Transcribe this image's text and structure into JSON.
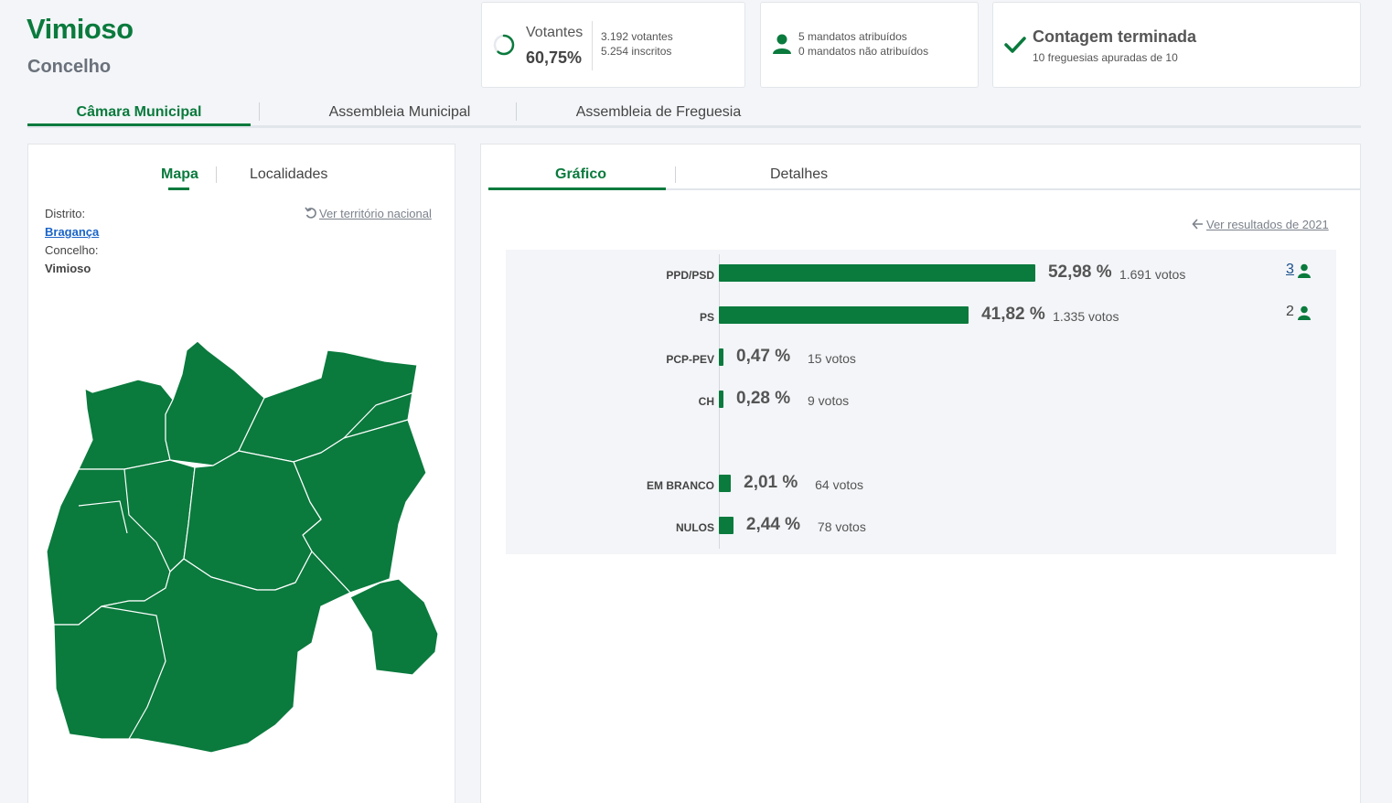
{
  "header": {
    "title": "Vimioso",
    "subtitle": "Concelho"
  },
  "stats": {
    "votantes_label": "Votantes",
    "votantes_pct": "60,75%",
    "votantes_count": "3.192 votantes",
    "inscritos": "5.254 inscritos",
    "mandatos_atribuidos": "5 mandatos atribuídos",
    "mandatos_nao_atribuidos": "0 mandatos não atribuídos",
    "contagem_title": "Contagem terminada",
    "freguesias": "10 freguesias apuradas de 10",
    "participation_fraction": 0.6075
  },
  "tabs": [
    "Câmara Municipal",
    "Assembleia Municipal",
    "Assembleia de Freguesia"
  ],
  "left": {
    "tabs": [
      "Mapa",
      "Localidades"
    ],
    "distrito_label": "Distrito:",
    "distrito_value": "Bragança",
    "concelho_label": "Concelho:",
    "concelho_value": "Vimioso",
    "ver_territorio": "Ver território nacional"
  },
  "right": {
    "tabs": [
      "Gráfico",
      "Detalhes"
    ],
    "ver_resultados": "Ver resultados de 2021"
  },
  "colors": {
    "accent": "#0a7a3d",
    "link": "#1a64c8"
  },
  "chart_data": {
    "type": "bar",
    "orientation": "horizontal",
    "categories": [
      "PPD/PSD",
      "PS",
      "PCP-PEV",
      "CH",
      "EM BRANCO",
      "NULOS"
    ],
    "values": [
      52.98,
      41.82,
      0.47,
      0.28,
      2.01,
      2.44
    ],
    "value_labels": [
      "52,98 %",
      "41,82 %",
      "0,47 %",
      "0,28 %",
      "2,01 %",
      "2,44 %"
    ],
    "votes": [
      "1.691 votos",
      "1.335 votos",
      "15 votos",
      "9 votos",
      "64 votos",
      "78 votos"
    ],
    "mandates": [
      "3",
      "2",
      "",
      "",
      "",
      ""
    ],
    "xlim": [
      0,
      100
    ]
  }
}
